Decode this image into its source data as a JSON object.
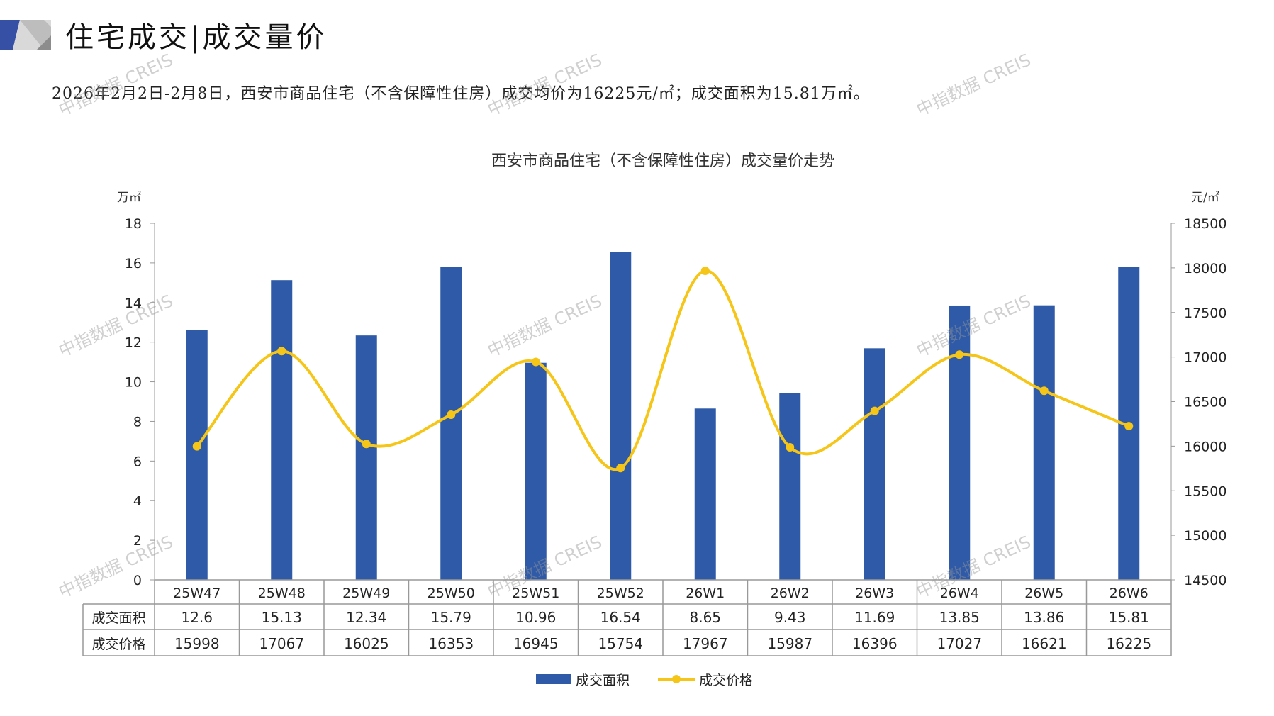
{
  "header": {
    "title": "住宅成交|成交量价",
    "summary": "2026年2月2日-2月8日，西安市商品住宅（不含保障性住房）成交均价为16225元/㎡；成交面积为15.81万㎡。"
  },
  "watermark": "中指数据 CREIS",
  "chart_data": {
    "type": "bar+line",
    "title": "西安市商品住宅（不含保障性住房）成交量价走势",
    "categories": [
      "25W47",
      "25W48",
      "25W49",
      "25W50",
      "25W51",
      "25W52",
      "26W1",
      "26W2",
      "26W3",
      "26W4",
      "26W5",
      "26W6"
    ],
    "series": [
      {
        "name": "成交面积",
        "type": "bar",
        "axis": "left",
        "color": "#2E5AA7",
        "values": [
          12.6,
          15.13,
          12.34,
          15.79,
          10.96,
          16.54,
          8.65,
          9.43,
          11.69,
          13.85,
          13.86,
          15.81
        ],
        "labels": [
          "12.6",
          "15.13",
          "12.34",
          "15.79",
          "10.96",
          "16.54",
          "8.65",
          "9.43",
          "11.69",
          "13.85",
          "13.86",
          "15.81"
        ]
      },
      {
        "name": "成交价格",
        "type": "line",
        "axis": "right",
        "color": "#F5C518",
        "values": [
          15998,
          17067,
          16025,
          16353,
          16945,
          15754,
          17967,
          15987,
          16396,
          17027,
          16621,
          16225
        ]
      }
    ],
    "left_axis": {
      "label": "万㎡",
      "ylim": [
        0,
        18
      ],
      "ticks": [
        0,
        2,
        4,
        6,
        8,
        10,
        12,
        14,
        16,
        18
      ]
    },
    "right_axis": {
      "label": "元/㎡",
      "ylim": [
        14500,
        18500
      ],
      "ticks": [
        14500,
        15000,
        15500,
        16000,
        16500,
        17000,
        17500,
        18000,
        18500
      ]
    },
    "legend": "bottom",
    "grid": false
  }
}
